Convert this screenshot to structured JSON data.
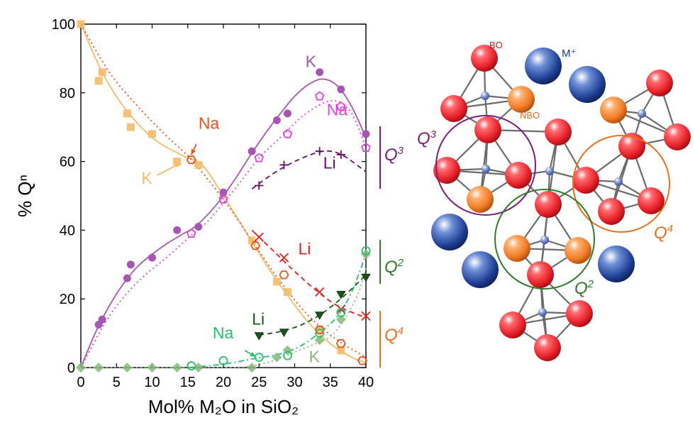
{
  "chart_data": {
    "type": "scatter",
    "xlabel": "Mol% M₂O in SiO₂",
    "ylabel": "% Qⁿ",
    "xlim": [
      0,
      40
    ],
    "ylim": [
      0,
      100
    ],
    "xticks": [
      0,
      5,
      10,
      15,
      20,
      25,
      30,
      35,
      40
    ],
    "yticks": [
      0,
      20,
      40,
      60,
      80,
      100
    ],
    "grid": false,
    "colors": {
      "K_Q4": "#f5bb6a",
      "Na_Q4": "#e8521d",
      "Li_Q4": "#e0201b",
      "K_Q3": "#a757b3",
      "Na_Q3": "#e040e0",
      "Li_Q3": "#6a0f6a",
      "K_Q2": "#85b87a",
      "Na_Q2": "#29c06a",
      "Li_Q2": "#155a14"
    },
    "series": [
      {
        "name": "K",
        "group": "Q4",
        "color": "#f5bb6a",
        "marker": "square",
        "line": "solid",
        "points": [
          [
            0,
            100
          ],
          [
            2.5,
            83.5
          ],
          [
            3,
            86
          ],
          [
            6.5,
            74
          ],
          [
            7,
            70
          ],
          [
            10,
            68
          ],
          [
            13.5,
            60
          ],
          [
            16.5,
            59
          ],
          [
            24,
            37
          ],
          [
            27.5,
            25
          ],
          [
            29,
            22
          ],
          [
            33.5,
            11
          ],
          [
            36.5,
            5
          ]
        ],
        "fit": [
          [
            0,
            100
          ],
          [
            3,
            86
          ],
          [
            6,
            76
          ],
          [
            10,
            67
          ],
          [
            14,
            62
          ],
          [
            17,
            59
          ],
          [
            20,
            50
          ],
          [
            23,
            40
          ],
          [
            26,
            30
          ],
          [
            29,
            21
          ],
          [
            32,
            13
          ],
          [
            35,
            7
          ],
          [
            38,
            3
          ],
          [
            40,
            1.5
          ]
        ]
      },
      {
        "name": "Na",
        "group": "Q4",
        "color": "#e8521d",
        "marker": "hexagon",
        "line": "dotted",
        "points": [
          [
            15.5,
            60.5
          ],
          [
            24.5,
            35.5
          ],
          [
            28.5,
            27
          ],
          [
            33.5,
            11
          ],
          [
            36.5,
            7
          ],
          [
            39.5,
            2
          ]
        ],
        "fit": [
          [
            0,
            100
          ],
          [
            4,
            86
          ],
          [
            8,
            76
          ],
          [
            12,
            67.5
          ],
          [
            15.5,
            60.5
          ],
          [
            20,
            49
          ],
          [
            24,
            37
          ],
          [
            28,
            25
          ],
          [
            32,
            15
          ],
          [
            36,
            8
          ],
          [
            40,
            3
          ]
        ]
      },
      {
        "name": "Li",
        "group": "Q4",
        "color": "#e0201b",
        "marker": "x",
        "line": "dashed",
        "points": [
          [
            25,
            38
          ],
          [
            28.5,
            32
          ],
          [
            33.5,
            22
          ],
          [
            36.5,
            17
          ],
          [
            40,
            15
          ]
        ],
        "fit": [
          [
            24,
            40
          ],
          [
            27,
            34
          ],
          [
            30,
            28
          ],
          [
            33,
            22.5
          ],
          [
            36,
            18
          ],
          [
            40,
            14.5
          ]
        ]
      },
      {
        "name": "K",
        "group": "Q3",
        "color": "#a757b3",
        "marker": "circle",
        "line": "solid",
        "points": [
          [
            2.5,
            12.5
          ],
          [
            3,
            14
          ],
          [
            6.5,
            26
          ],
          [
            7,
            30
          ],
          [
            10,
            32
          ],
          [
            13.5,
            40
          ],
          [
            16.5,
            41
          ],
          [
            20,
            51
          ],
          [
            24,
            63
          ],
          [
            27.5,
            72
          ],
          [
            29,
            74
          ],
          [
            33.5,
            86
          ],
          [
            36.5,
            81
          ],
          [
            40,
            68
          ]
        ],
        "fit": [
          [
            0,
            0
          ],
          [
            2,
            10
          ],
          [
            4,
            18
          ],
          [
            6,
            24.5
          ],
          [
            8,
            29.5
          ],
          [
            10,
            33
          ],
          [
            12,
            36
          ],
          [
            14,
            38.5
          ],
          [
            16,
            41
          ],
          [
            18,
            45
          ],
          [
            20,
            50
          ],
          [
            22,
            56
          ],
          [
            24,
            62.5
          ],
          [
            26,
            68.5
          ],
          [
            28,
            74
          ],
          [
            30,
            79
          ],
          [
            32,
            82.5
          ],
          [
            34,
            84
          ],
          [
            36,
            82
          ],
          [
            38,
            76
          ],
          [
            40,
            67
          ]
        ]
      },
      {
        "name": "Na",
        "group": "Q3",
        "color": "#e040e0",
        "marker": "pentagon",
        "line": "dotted",
        "points": [
          [
            15.5,
            39
          ],
          [
            20,
            49
          ],
          [
            25,
            61
          ],
          [
            29,
            68
          ],
          [
            33.5,
            79
          ],
          [
            36.5,
            76
          ],
          [
            40,
            64
          ]
        ],
        "fit": [
          [
            0,
            0
          ],
          [
            4,
            15
          ],
          [
            8,
            25
          ],
          [
            12,
            32
          ],
          [
            15.5,
            38.5
          ],
          [
            18,
            43
          ],
          [
            20,
            48
          ],
          [
            22,
            53
          ],
          [
            25,
            61
          ],
          [
            28,
            67
          ],
          [
            31,
            73
          ],
          [
            34,
            77
          ],
          [
            36,
            77.5
          ],
          [
            38,
            74
          ],
          [
            40,
            64
          ]
        ]
      },
      {
        "name": "Li",
        "group": "Q3",
        "color": "#6a0f6a",
        "marker": "plus",
        "line": "dashed",
        "points": [
          [
            25,
            53
          ],
          [
            28.5,
            59
          ],
          [
            33.5,
            63
          ],
          [
            36.5,
            62
          ]
        ],
        "fit": [
          [
            24,
            52
          ],
          [
            27,
            56.5
          ],
          [
            30,
            60
          ],
          [
            33,
            62.5
          ],
          [
            35,
            63
          ],
          [
            37,
            61.5
          ],
          [
            40,
            57
          ]
        ]
      },
      {
        "name": "K",
        "group": "Q2",
        "color": "#85b87a",
        "marker": "diamond",
        "line": "dotted",
        "points": [
          [
            0,
            0
          ],
          [
            2.5,
            0
          ],
          [
            6.5,
            0
          ],
          [
            10,
            0
          ],
          [
            13.5,
            0
          ],
          [
            16.5,
            0
          ],
          [
            24,
            0
          ],
          [
            27.5,
            3
          ],
          [
            29,
            5
          ],
          [
            33.5,
            8
          ],
          [
            36.5,
            14
          ],
          [
            40,
            33
          ]
        ],
        "fit": [
          [
            0,
            0
          ],
          [
            20,
            0
          ],
          [
            24,
            0.5
          ],
          [
            27,
            2
          ],
          [
            30,
            4.5
          ],
          [
            33,
            7
          ],
          [
            35,
            9
          ],
          [
            37,
            14
          ],
          [
            39,
            22
          ],
          [
            40,
            29
          ]
        ]
      },
      {
        "name": "Na",
        "group": "Q2",
        "color": "#29c06a",
        "marker": "circle-open",
        "line": "dash-dot",
        "points": [
          [
            15.5,
            0.5
          ],
          [
            20,
            2
          ],
          [
            25,
            3
          ],
          [
            29,
            3.5
          ],
          [
            33.5,
            10
          ],
          [
            36.5,
            16
          ],
          [
            40,
            34
          ]
        ],
        "fit": [
          [
            15,
            0
          ],
          [
            20,
            1
          ],
          [
            24,
            2.5
          ],
          [
            28,
            4
          ],
          [
            31,
            6.5
          ],
          [
            34,
            11
          ],
          [
            36,
            15
          ],
          [
            38,
            22
          ],
          [
            40,
            33
          ]
        ]
      },
      {
        "name": "Li",
        "group": "Q2",
        "color": "#155a14",
        "marker": "triangle-down",
        "line": "dashed",
        "points": [
          [
            25,
            9.5
          ],
          [
            28.5,
            10.5
          ],
          [
            33.5,
            15.5
          ],
          [
            36.5,
            21.5
          ],
          [
            40,
            26.5
          ]
        ],
        "fit": [
          [
            25,
            9.5
          ],
          [
            28,
            10.5
          ],
          [
            31,
            12.5
          ],
          [
            34,
            16
          ],
          [
            37,
            21
          ],
          [
            40,
            27
          ]
        ]
      }
    ],
    "annotations": [
      {
        "text": "K",
        "color": "#a757b3",
        "x": 31.5,
        "y": 87.5
      },
      {
        "text": "Na",
        "color": "#e040e0",
        "x": 34.5,
        "y": 73.5
      },
      {
        "text": "Li",
        "color": "#6a0f6a",
        "x": 34,
        "y": 58
      },
      {
        "text": "Na",
        "color": "#e8521d",
        "x": 16.5,
        "y": 69.5
      },
      {
        "text": "K",
        "color": "#f5bb6a",
        "x": 8.5,
        "y": 53.5
      },
      {
        "text": "Li",
        "color": "#e0201b",
        "x": 30.5,
        "y": 33
      },
      {
        "text": "Li",
        "color": "#155a14",
        "x": 24,
        "y": 12.5
      },
      {
        "text": "Na",
        "color": "#29c06a",
        "x": 18.5,
        "y": 8.5
      },
      {
        "text": "K",
        "color": "#85b87a",
        "x": 32,
        "y": 1.5
      }
    ],
    "bracket_labels": [
      {
        "text": "Q",
        "sup": "3",
        "color": "#7b1e7e"
      },
      {
        "text": "Q",
        "sup": "2",
        "color": "#2f7d28"
      },
      {
        "text": "Q",
        "sup": "4",
        "color": "#e8701d"
      }
    ]
  },
  "diagram": {
    "labels": {
      "bo": "BO",
      "nbo": "NBO",
      "cation": "M⁺"
    },
    "group_labels": [
      {
        "text": "Q",
        "sup": "3",
        "color": "#7b1e7e"
      },
      {
        "text": "Q",
        "sup": "4",
        "color": "#e8701d"
      },
      {
        "text": "Q",
        "sup": "2",
        "color": "#2f7d28"
      }
    ],
    "colors": {
      "bridging_oxygen": "#e8222a",
      "non_bridging_oxygen": "#f07a25",
      "silicon": "#5b6fb5",
      "cation": "#1a3a8f"
    }
  }
}
